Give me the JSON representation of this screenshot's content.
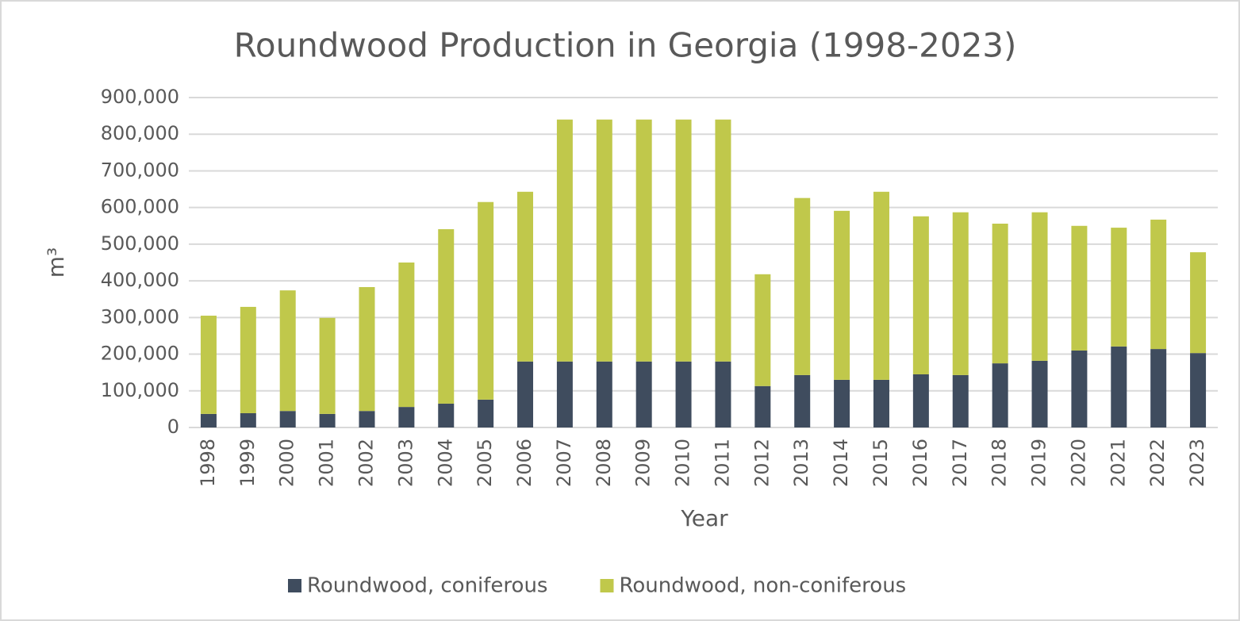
{
  "chart_data": {
    "type": "bar",
    "stacked": true,
    "title": "Roundwood Production in Georgia (1998-2023)",
    "x_label": "Year",
    "y_label": "m³",
    "categories": [
      "1998",
      "1999",
      "2000",
      "2001",
      "2002",
      "2003",
      "2004",
      "2005",
      "2006",
      "2007",
      "2008",
      "2009",
      "2010",
      "2011",
      "2012",
      "2013",
      "2014",
      "2015",
      "2016",
      "2017",
      "2018",
      "2019",
      "2020",
      "2021",
      "2022",
      "2023"
    ],
    "series": [
      {
        "name": "Roundwood, coniferous",
        "color": "#3f4c5e",
        "values": [
          37000,
          39000,
          45000,
          37000,
          45000,
          56000,
          65000,
          76000,
          180000,
          180000,
          180000,
          180000,
          180000,
          180000,
          113000,
          143000,
          130000,
          130000,
          145000,
          143000,
          175000,
          182000,
          210000,
          221000,
          214000,
          203000
        ]
      },
      {
        "name": "Roundwood, non-coniferous",
        "color": "#c0c84b",
        "values": [
          268000,
          290000,
          329000,
          262000,
          338000,
          394000,
          476000,
          539000,
          463000,
          660000,
          660000,
          660000,
          660000,
          660000,
          305000,
          483000,
          461000,
          513000,
          431000,
          444000,
          381000,
          405000,
          340000,
          324000,
          353000,
          275000
        ]
      }
    ],
    "ylim": [
      0,
      900000
    ],
    "yticks": [
      0,
      {
        "value": 100000,
        "label": "100,000"
      },
      {
        "value": 200000,
        "label": "200,000"
      },
      {
        "value": 300000,
        "label": "300,000"
      },
      {
        "value": 400000,
        "label": "400,000"
      },
      {
        "value": 500000,
        "label": "500,000"
      },
      {
        "value": 600000,
        "label": "600,000"
      },
      {
        "value": 700000,
        "label": "700,000"
      },
      {
        "value": 800000,
        "label": "800,000"
      },
      {
        "value": 900000,
        "label": "900,000"
      }
    ],
    "grid": true,
    "legend": "bottom"
  }
}
